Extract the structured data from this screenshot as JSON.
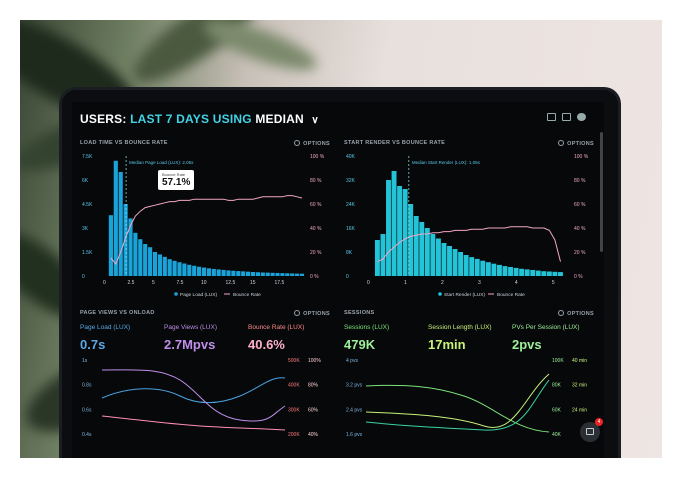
{
  "header": {
    "prefix": "USERS:",
    "range": "LAST 7 DAYS",
    "using": "USING",
    "method": "MEDIAN"
  },
  "icons": [
    "monitor-icon",
    "image-icon",
    "help-icon",
    "chevron-down-icon",
    "chat-icon"
  ],
  "options_label": "OPTIONS",
  "colors": {
    "cyan": "#1aa3d9",
    "teal": "#23c4d8",
    "pink": "#f3a6c6",
    "green": "#7be37a",
    "purple": "#c08ee8",
    "red": "#ff6a6a",
    "lime": "#c9f27a"
  },
  "panels": {
    "load_time": {
      "title": "LOAD TIME VS BOUNCE RATE",
      "median_label": "Median Page Load (LUX): 2.05s",
      "tooltip": {
        "label": "Bounce Rate",
        "value": "57.1%"
      },
      "y_left": [
        "7.5K",
        "6K",
        "4.5K",
        "3K",
        "1.5K",
        "0"
      ],
      "y_right": [
        "100 %",
        "80 %",
        "60 %",
        "40 %",
        "20 %",
        "0 %"
      ],
      "x_ticks": [
        "0",
        "2.5",
        "5",
        "7.5",
        "10",
        "12.5",
        "15",
        "17.5"
      ],
      "legend": [
        "Page Load (LUX)",
        "Bounce Rate"
      ]
    },
    "start_render": {
      "title": "START RENDER VS BOUNCE RATE",
      "median_label": "Median Start Render (LUX): 1.05s",
      "y_left": [
        "40K",
        "32K",
        "24K",
        "16K",
        "8K",
        "0"
      ],
      "y_right": [
        "100 %",
        "80 %",
        "60 %",
        "40 %",
        "20 %",
        "0 %"
      ],
      "x_ticks": [
        "0",
        "1",
        "2",
        "3",
        "4",
        "5"
      ],
      "legend": [
        "Start Render (LUX)",
        "Bounce Rate"
      ]
    },
    "page_views": {
      "title": "PAGE VIEWS VS ONLOAD",
      "metrics": [
        {
          "label": "Page Load (LUX)",
          "value": "0.7s"
        },
        {
          "label": "Page Views (LUX)",
          "value": "2.7Mpvs"
        },
        {
          "label": "Bounce Rate (LUX)",
          "value": "40.6%"
        }
      ],
      "y_left": [
        "1s",
        "0.8s",
        "0.6s",
        "0.4s"
      ],
      "y_right_a": [
        "500K",
        "400K",
        "300K",
        "200K"
      ],
      "y_right_b": [
        "100%",
        "80%",
        "60%",
        "40%"
      ]
    },
    "sessions": {
      "title": "SESSIONS",
      "metrics": [
        {
          "label": "Sessions (LUX)",
          "value": "479K"
        },
        {
          "label": "Session Length (LUX)",
          "value": "17min"
        },
        {
          "label": "PVs Per Session (LUX)",
          "value": "2pvs"
        }
      ],
      "y_left": [
        "4 pvs",
        "3.2 pvs",
        "2.4 pvs",
        "1.6 pvs"
      ],
      "y_right_a": [
        "100K",
        "80K",
        "60K",
        "40K"
      ],
      "y_right_b": [
        "40 min",
        "32 min",
        "24 min",
        ""
      ]
    }
  },
  "chat_badge": "4",
  "chart_data": [
    {
      "type": "bar",
      "title": "LOAD TIME VS BOUNCE RATE",
      "x": [
        0.5,
        1.0,
        1.5,
        2.0,
        2.5,
        3.0,
        3.5,
        4.0,
        4.5,
        5.0,
        5.5,
        6.0,
        6.5,
        7.0,
        7.5,
        8.0,
        8.5,
        9.0,
        9.5,
        10.0,
        10.5,
        11.0,
        11.5,
        12.0,
        12.5,
        13.0,
        13.5,
        14.0,
        14.5,
        15.0,
        15.5,
        16.0,
        16.5,
        17.0,
        17.5,
        18.0,
        18.5,
        19.0,
        19.5,
        20.0
      ],
      "series": [
        {
          "name": "Page Load (LUX)",
          "values": [
            3800,
            7200,
            6500,
            4500,
            3600,
            2700,
            2300,
            2000,
            1800,
            1500,
            1350,
            1200,
            1050,
            950,
            860,
            780,
            700,
            640,
            580,
            530,
            480,
            440,
            410,
            380,
            350,
            330,
            310,
            290,
            270,
            250,
            235,
            220,
            210,
            200,
            190,
            180,
            170,
            160,
            150,
            145
          ]
        },
        {
          "name": "Bounce Rate",
          "values": [
            15,
            10,
            20,
            32,
            42,
            50,
            54,
            57,
            58,
            59,
            60,
            61,
            62,
            62,
            63,
            63,
            63,
            64,
            64,
            64,
            64,
            64,
            64,
            64,
            63,
            63,
            64,
            64,
            64,
            64,
            65,
            66,
            66,
            66,
            66,
            66,
            67,
            67,
            66,
            65
          ]
        }
      ],
      "ylim": [
        0,
        7500
      ],
      "y2lim": [
        0,
        100
      ],
      "xlim": [
        0,
        20
      ]
    },
    {
      "type": "bar",
      "title": "START RENDER VS BOUNCE RATE",
      "x": [
        0.2,
        0.35,
        0.5,
        0.65,
        0.8,
        0.95,
        1.1,
        1.25,
        1.4,
        1.55,
        1.7,
        1.85,
        2.0,
        2.15,
        2.3,
        2.45,
        2.6,
        2.75,
        2.9,
        3.05,
        3.2,
        3.35,
        3.5,
        3.65,
        3.8,
        3.95,
        4.1,
        4.25,
        4.4,
        4.55,
        4.7,
        4.85,
        5.0,
        5.15
      ],
      "series": [
        {
          "name": "Start Render (LUX)",
          "values": [
            12000,
            14000,
            32000,
            35000,
            30000,
            29000,
            24000,
            20000,
            18000,
            16000,
            14000,
            12500,
            11000,
            10000,
            9000,
            8000,
            7000,
            6300,
            5700,
            5100,
            4600,
            4100,
            3700,
            3300,
            3000,
            2700,
            2400,
            2200,
            2000,
            1800,
            1600,
            1500,
            1400,
            1300
          ]
        },
        {
          "name": "Bounce Rate",
          "values": [
            12,
            14,
            20,
            24,
            28,
            31,
            33,
            34,
            35,
            35,
            36,
            36,
            37,
            37,
            38,
            38,
            38,
            39,
            39,
            39,
            40,
            40,
            40,
            40,
            41,
            41,
            41,
            41,
            40,
            40,
            40,
            38,
            30,
            12
          ]
        }
      ],
      "ylim": [
        0,
        40000
      ],
      "y2lim": [
        0,
        100
      ],
      "xlim": [
        0,
        5.3
      ]
    }
  ]
}
